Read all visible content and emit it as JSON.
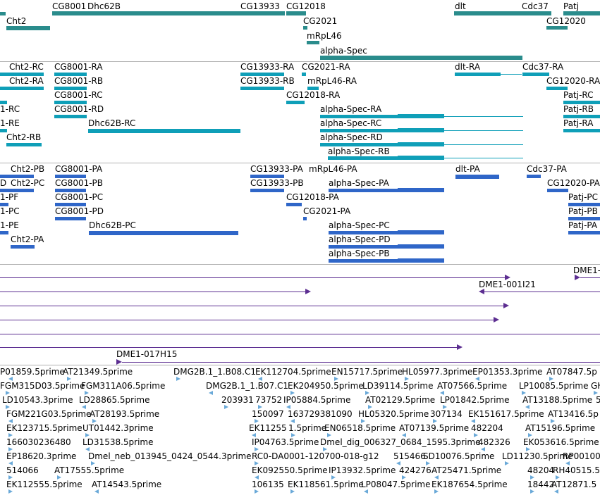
{
  "colors": {
    "gene": "#2a8c8c",
    "transcript": "#0f9fb8",
    "protein": "#2f66c8",
    "clone": "#5c2e91",
    "est": "#6aa9d8",
    "divider": "#b0b0b0"
  },
  "genes": {
    "labels": [
      "Cht2",
      "CG8001",
      "Dhc62B",
      "CG13933",
      "CG12018",
      "dlt",
      "Cdc37",
      "Patj",
      "CG2021",
      "mRpL46",
      "alpha-Spec",
      "CG12020"
    ]
  },
  "transcripts": {
    "labels": [
      "Cht2-RC",
      "Cht2-RA",
      "1-RC",
      "1-RE",
      "Cht2-RB",
      "CG8001-RA",
      "CG8001-RB",
      "CG8001-RC",
      "CG8001-RD",
      "Dhc62B-RC",
      "CG13933-RA",
      "CG13933-RB",
      "CG2021-RA",
      "mRpL46-RA",
      "CG12018-RA",
      "alpha-Spec-RA",
      "alpha-Spec-RC",
      "alpha-Spec-RD",
      "alpha-Spec-RB",
      "dlt-RA",
      "Cdc37-RA",
      "CG12020-RA",
      "Patj-RC",
      "Patj-RB",
      "Patj-RA"
    ]
  },
  "proteins": {
    "labels": [
      "Cht2-PB",
      "Cht2-PC",
      "1-PF",
      "1-PC",
      "1-PE",
      "Cht2-PA",
      "CG8001-PA",
      "CG8001-PB",
      "CG8001-PC",
      "CG8001-PD",
      "Dhc62B-PC",
      "CG13933-PA",
      "CG13933-PB",
      "mRpL46-PA",
      "CG12018-PA",
      "CG2021-PA",
      "alpha-Spec-PA",
      "alpha-Spec-PC",
      "alpha-Spec-PD",
      "alpha-Spec-PB",
      "dlt-PA",
      "Cdc37-PA",
      "CG12020-PA",
      "Patj-PC",
      "Patj-PB",
      "Patj-PA",
      "D"
    ]
  },
  "clones": {
    "labels": [
      "DME1-001I21",
      "DME1-017H15",
      "DME1-"
    ]
  },
  "ests": {
    "labels": [
      "P01859.5prime",
      "AT21349.5prime",
      "DMG2B.1_1.B08.C1",
      "EK112704.5prime",
      "EN15717.5prime",
      "HL05977.3prime",
      "EP01353.3prime",
      "AT07847.5p",
      "FGM315D03.5prime",
      "FGM311A06.5prime",
      "DMG2B.1_1.B07.C1",
      "EK204950.5prime",
      "LD39114.5prime",
      "AT07566.5prime",
      "LP10085.5prime",
      "GH",
      "LD10543.3prime",
      "LD28865.5prime",
      "203931",
      "73752",
      "IP05884.5prime",
      "AT02129.5prime",
      "LP01842.5prime",
      "AT13188.5prime",
      "5",
      "FGM221G03.5prime",
      "AT28193.5prime",
      "150097",
      "163729381090",
      "HL05320.5prime",
      "307134",
      "EK151617.5prime",
      "AT13416.5p",
      "EK123715.5prime",
      "UT01442.3prime",
      "EK11255",
      "1.5prime",
      "EN06518.5prime",
      "AT07139.5prime",
      "482204",
      "AT15196.5prime",
      "166030236480",
      "LD31538.5prime",
      "IP04763.5prime",
      "Dmel_dig_006327_0684_1595.3prime",
      "482326",
      "EK053616.5prime",
      "EP18620.3prime",
      "Dmel_neb_013945_0424_0544.3prime",
      "RC0-DA0001-120700-018-g12",
      "515466",
      "SD10076.5prime",
      "LD11230.5prime",
      "RP00100",
      "514066",
      "AT17555.5prime",
      "EK092550.5prime",
      "IP13932.5prime",
      "424276",
      "AT25471.5prime",
      "48204",
      "RH40515.5",
      "EK112555.5prime",
      "AT14543.5prime",
      "106135",
      "EK118561.5prime",
      "LP08047.5prime",
      "EK187654.5prime",
      "18442",
      "AT12871.5"
    ]
  }
}
